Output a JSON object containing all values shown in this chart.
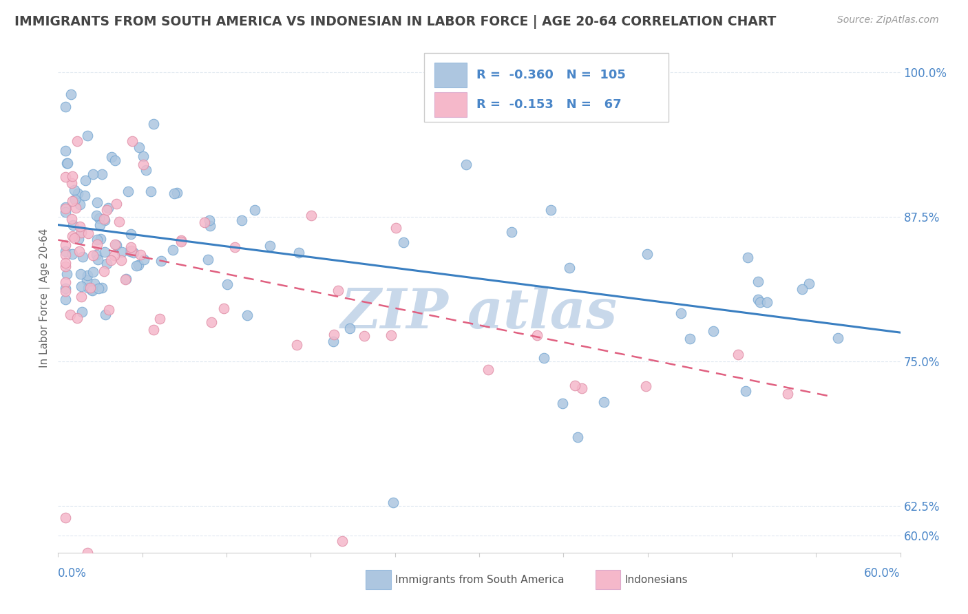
{
  "title": "IMMIGRANTS FROM SOUTH AMERICA VS INDONESIAN IN LABOR FORCE | AGE 20-64 CORRELATION CHART",
  "source": "Source: ZipAtlas.com",
  "ylabel": "In Labor Force | Age 20-64",
  "xmin": 0.0,
  "xmax": 0.6,
  "ymin": 0.585,
  "ymax": 1.025,
  "blue_R": -0.36,
  "blue_N": 105,
  "pink_R": -0.153,
  "pink_N": 67,
  "blue_color": "#adc6e0",
  "pink_color": "#f5b8ca",
  "blue_line_color": "#3a7fc1",
  "pink_line_color": "#e06080",
  "title_color": "#444444",
  "label_color": "#4a86c8",
  "axis_color": "#4a86c8",
  "watermark_color": "#c8d8ea",
  "background_color": "#ffffff",
  "grid_color": "#e0e8f0",
  "yticks": [
    0.6,
    0.625,
    0.75,
    0.875,
    1.0
  ],
  "ytick_labels": [
    "60.0%",
    "62.5%",
    "75.0%",
    "87.5%",
    "100.0%"
  ],
  "blue_trend_x0": 0.0,
  "blue_trend_y0": 0.868,
  "blue_trend_x1": 0.6,
  "blue_trend_y1": 0.775,
  "pink_trend_x0": 0.0,
  "pink_trend_y0": 0.855,
  "pink_trend_x1": 0.55,
  "pink_trend_y1": 0.72
}
